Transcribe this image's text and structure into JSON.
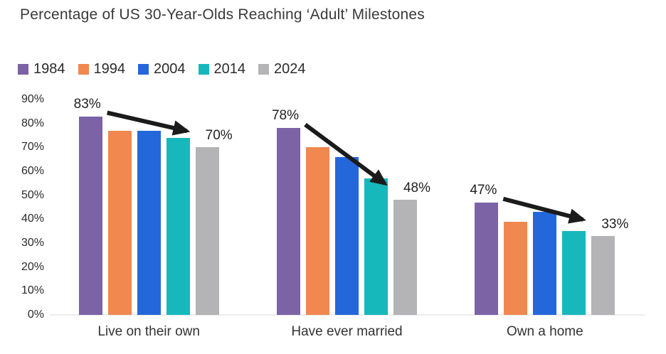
{
  "chart_data": {
    "type": "bar",
    "title": "Percentage of US 30-Year-Olds Reaching ‘Adult’ Milestones",
    "categories": [
      "Live on their own",
      "Have ever married",
      "Own a home"
    ],
    "series": [
      {
        "name": "1984",
        "color": "#7b63a6",
        "values": [
          83,
          78,
          47
        ]
      },
      {
        "name": "1994",
        "color": "#f0884f",
        "values": [
          77,
          70,
          39
        ]
      },
      {
        "name": "2004",
        "color": "#2467db",
        "values": [
          77,
          66,
          43
        ]
      },
      {
        "name": "2014",
        "color": "#17b8bc",
        "values": [
          74,
          57,
          35
        ]
      },
      {
        "name": "2024",
        "color": "#b4b4b7",
        "values": [
          70,
          48,
          33
        ]
      }
    ],
    "xlabel": "",
    "ylabel": "",
    "ylim": [
      0,
      90
    ],
    "yticks": [
      "0%",
      "10%",
      "20%",
      "30%",
      "40%",
      "50%",
      "60%",
      "70%",
      "80%",
      "90%"
    ],
    "grid": false,
    "legend_position": "top-left",
    "annotations": [
      {
        "category": "Live on their own",
        "start_label": "83%",
        "end_label": "70%",
        "arrow": "down-right"
      },
      {
        "category": "Have ever married",
        "start_label": "78%",
        "end_label": "48%",
        "arrow": "down-right"
      },
      {
        "category": "Own a home",
        "start_label": "47%",
        "end_label": "33%",
        "arrow": "down-right"
      }
    ],
    "annotation_color": "#1b1b1b",
    "baseline_color": "#ececec"
  }
}
